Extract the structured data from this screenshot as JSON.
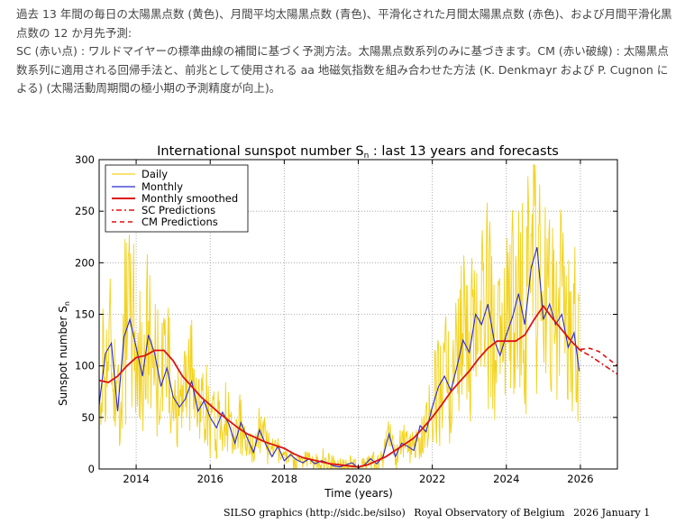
{
  "description": {
    "line1": "過去 13 年間の毎日の太陽黒点数 (黄色)、月間平均太陽黒点数 (青色)、平滑化された月間太陽黒点数 (赤色)、および月間平滑化黒点数の 12 か月先予測:",
    "line2": "SC (赤い点) : ワルドマイヤーの標準曲線の補間に基づく予測方法。太陽黒点数系列のみに基づきます。CM (赤い破線) : 太陽黒点数系列に適用される回帰手法と、前兆として使用される aa 地磁気指数を組み合わせた方法 (K. Denkmayr および P. Cugnon による) (太陽活動周期間の極小期の予測精度が向上)。"
  },
  "credit": {
    "source": "SILSO graphics (http://sidc.be/silso)",
    "org": "Royal Observatory of Belgium",
    "date": "2026 January 1"
  },
  "colors": {
    "daily": "#f2d21c",
    "monthly": "#2a2ad0",
    "smoothed": "#dd1111",
    "predictions": "#dd1111"
  },
  "chart_data": {
    "type": "line",
    "title_main": "International sunspot number S",
    "title_sub": "n",
    "title_rest": " : last 13 years and forecasts",
    "xlabel": "Time (years)",
    "ylabel_main": "Sunspot number S",
    "ylabel_sub": "n",
    "xlim": [
      2013.0,
      2027.0
    ],
    "ylim": [
      0,
      300
    ],
    "xticks": [
      2014,
      2016,
      2018,
      2020,
      2022,
      2024,
      2026
    ],
    "yticks": [
      0,
      50,
      100,
      150,
      200,
      250,
      300
    ],
    "grid": true,
    "legend_position": "top-left",
    "legend": [
      "Daily",
      "Monthly",
      "Monthly smoothed",
      "SC Predictions",
      "CM Predictions"
    ],
    "series": [
      {
        "name": "Monthly smoothed",
        "style": "solid",
        "x": [
          2013.0,
          2013.25,
          2013.5,
          2013.75,
          2014.0,
          2014.25,
          2014.5,
          2014.75,
          2015.0,
          2015.25,
          2015.5,
          2015.75,
          2016.0,
          2016.25,
          2016.5,
          2016.75,
          2017.0,
          2017.25,
          2017.5,
          2017.75,
          2018.0,
          2018.25,
          2018.5,
          2018.75,
          2019.0,
          2019.25,
          2019.5,
          2019.75,
          2020.0,
          2020.25,
          2020.5,
          2020.75,
          2021.0,
          2021.25,
          2021.5,
          2021.75,
          2022.0,
          2022.25,
          2022.5,
          2022.75,
          2023.0,
          2023.25,
          2023.5,
          2023.75,
          2024.0,
          2024.25,
          2024.5,
          2024.75,
          2025.0,
          2025.25,
          2025.5,
          2025.75,
          2026.0
        ],
        "values": [
          86,
          84,
          90,
          100,
          108,
          110,
          115,
          115,
          105,
          90,
          80,
          70,
          62,
          54,
          47,
          40,
          34,
          30,
          26,
          23,
          20,
          15,
          11,
          9,
          7,
          5,
          4,
          3,
          2,
          4,
          8,
          12,
          18,
          24,
          30,
          40,
          50,
          62,
          75,
          85,
          95,
          107,
          117,
          124,
          124,
          124,
          130,
          145,
          158,
          146,
          135,
          124,
          115
        ]
      },
      {
        "name": "Monthly",
        "style": "solid",
        "x": [
          2013.0,
          2013.17,
          2013.33,
          2013.5,
          2013.67,
          2013.83,
          2014.0,
          2014.17,
          2014.33,
          2014.5,
          2014.67,
          2014.83,
          2015.0,
          2015.17,
          2015.33,
          2015.5,
          2015.67,
          2015.83,
          2016.0,
          2016.17,
          2016.33,
          2016.5,
          2016.67,
          2016.83,
          2017.0,
          2017.17,
          2017.33,
          2017.5,
          2017.67,
          2017.83,
          2018.0,
          2018.17,
          2018.33,
          2018.5,
          2018.67,
          2018.83,
          2019.0,
          2019.17,
          2019.33,
          2019.5,
          2019.67,
          2019.83,
          2020.0,
          2020.17,
          2020.33,
          2020.5,
          2020.67,
          2020.83,
          2021.0,
          2021.17,
          2021.33,
          2021.5,
          2021.67,
          2021.83,
          2022.0,
          2022.17,
          2022.33,
          2022.5,
          2022.67,
          2022.83,
          2023.0,
          2023.17,
          2023.33,
          2023.5,
          2023.67,
          2023.83,
          2024.0,
          2024.17,
          2024.33,
          2024.5,
          2024.67,
          2024.83,
          2025.0,
          2025.17,
          2025.33,
          2025.5,
          2025.67,
          2025.83,
          2025.97
        ],
        "values": [
          62,
          112,
          122,
          56,
          128,
          145,
          118,
          90,
          130,
          112,
          80,
          98,
          70,
          60,
          68,
          85,
          56,
          66,
          50,
          40,
          55,
          44,
          25,
          45,
          30,
          16,
          38,
          24,
          12,
          22,
          8,
          14,
          9,
          6,
          10,
          5,
          8,
          6,
          3,
          2,
          4,
          6,
          1,
          4,
          10,
          5,
          12,
          34,
          12,
          25,
          22,
          18,
          42,
          36,
          60,
          80,
          90,
          76,
          100,
          125,
          113,
          150,
          140,
          160,
          125,
          110,
          130,
          148,
          170,
          140,
          195,
          215,
          145,
          160,
          140,
          150,
          118,
          132,
          95
        ]
      },
      {
        "name": "SC Predictions",
        "style": "dotted",
        "x": [
          2026.0,
          2026.25,
          2026.5,
          2026.75,
          2027.0
        ],
        "values": [
          115,
          110,
          104,
          98,
          92
        ]
      },
      {
        "name": "CM Predictions",
        "style": "dashed",
        "x": [
          2026.0,
          2026.25,
          2026.5,
          2026.75,
          2027.0
        ],
        "values": [
          116,
          117,
          114,
          107,
          100
        ]
      }
    ]
  }
}
